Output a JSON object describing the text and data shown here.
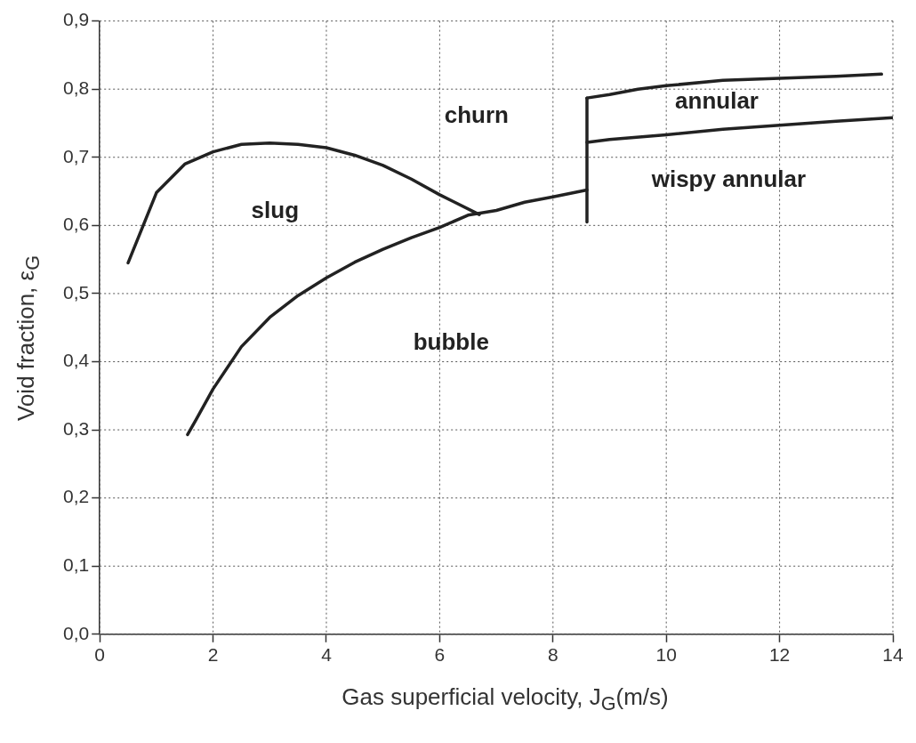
{
  "chart_data": {
    "type": "line",
    "xlabel": "Gas superficial velocity, J$_{G}$(m/s)",
    "ylabel": "Void fraction, ε$_{G}$",
    "xlim": [
      0,
      14
    ],
    "xticks": [
      0,
      2,
      4,
      6,
      8,
      10,
      12,
      14
    ],
    "ylim": [
      0,
      0.9
    ],
    "yticks": [
      {
        "value": 0,
        "label": "0,0"
      },
      {
        "value": 0.1,
        "label": "0,1"
      },
      {
        "value": 0.2,
        "label": "0,2"
      },
      {
        "value": 0.3,
        "label": "0,3"
      },
      {
        "value": 0.4,
        "label": "0,4"
      },
      {
        "value": 0.5,
        "label": "0,5"
      },
      {
        "value": 0.6,
        "label": "0,6"
      },
      {
        "value": 0.7,
        "label": "0,7"
      },
      {
        "value": 0.8,
        "label": "0,8"
      },
      {
        "value": 0.9,
        "label": "0,9"
      }
    ],
    "grid": true,
    "legend": false,
    "marker": "none",
    "line_style": "solid",
    "series": [
      {
        "color": "#222222",
        "x": [
          0.5,
          1.0,
          1.5,
          2,
          2.5,
          3,
          3.5,
          4,
          4.5,
          5,
          5.5,
          6,
          6.7
        ],
        "values": [
          0.545,
          0.648,
          0.69,
          0.708,
          0.719,
          0.721,
          0.719,
          0.714,
          0.703,
          0.688,
          0.668,
          0.645,
          0.616
        ]
      },
      {
        "color": "#222222",
        "x": [
          1.55,
          1.7,
          2,
          2.5,
          3,
          3.5,
          4,
          4.5,
          5,
          5.5,
          6,
          6.5,
          7,
          7.5,
          8,
          8.6
        ],
        "values": [
          0.293,
          0.315,
          0.36,
          0.422,
          0.465,
          0.497,
          0.523,
          0.546,
          0.565,
          0.582,
          0.597,
          0.615,
          0.622,
          0.634,
          0.642,
          0.652
        ]
      },
      {
        "color": "#222222",
        "x": [
          8.6,
          8.6
        ],
        "values": [
          0.605,
          0.787
        ]
      },
      {
        "color": "#222222",
        "x": [
          8.6,
          9,
          9.5,
          10,
          11,
          12,
          13,
          13.8
        ],
        "values": [
          0.787,
          0.792,
          0.8,
          0.805,
          0.813,
          0.816,
          0.819,
          0.822
        ]
      },
      {
        "color": "#222222",
        "x": [
          8.6,
          9,
          10,
          11,
          12,
          13,
          14
        ],
        "values": [
          0.722,
          0.726,
          0.733,
          0.741,
          0.747,
          0.753,
          0.758
        ]
      }
    ],
    "annotations": [
      "churn",
      "annular",
      "wispy annular",
      "slug",
      "bubble"
    ]
  }
}
